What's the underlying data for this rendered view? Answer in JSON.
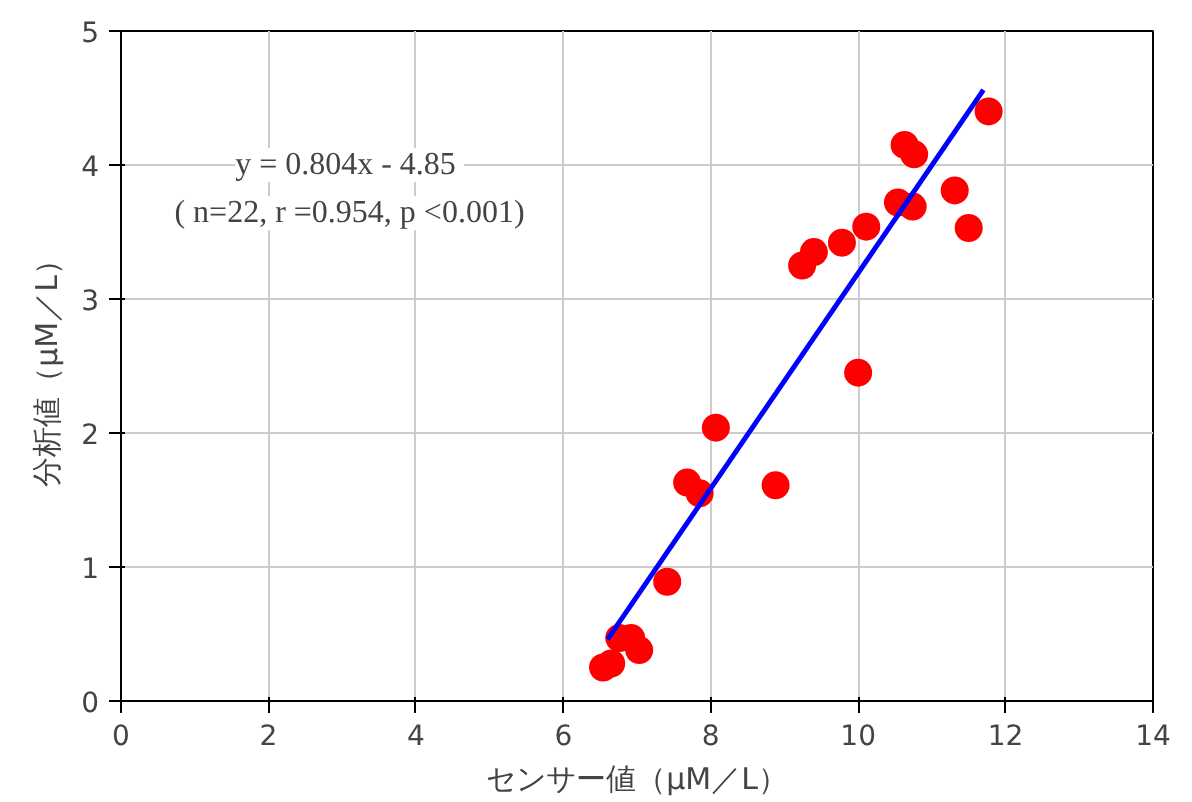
{
  "chart_data": {
    "type": "scatter",
    "xlabel": "センサー値（μM／L）",
    "ylabel": "分析値（μM／L）",
    "xlim": [
      0,
      14
    ],
    "xticks": [
      0,
      2,
      4,
      6,
      8,
      10,
      12,
      14
    ],
    "ylim": [
      0,
      5
    ],
    "yticks": [
      0,
      1,
      2,
      3,
      4,
      5
    ],
    "grid": true,
    "series": [
      {
        "marker": "circle",
        "color": "#ff0000",
        "x": [
          6.54,
          6.65,
          6.76,
          6.92,
          7.03,
          7.41,
          7.68,
          7.85,
          8.07,
          8.88,
          10.0,
          9.24,
          9.4,
          9.78,
          10.11,
          10.54,
          10.74,
          10.63,
          10.76,
          11.31,
          11.5,
          11.77
        ],
        "values": [
          0.25,
          0.28,
          0.47,
          0.47,
          0.38,
          0.89,
          1.63,
          1.55,
          2.04,
          1.61,
          2.45,
          3.25,
          3.35,
          3.42,
          3.54,
          3.72,
          3.69,
          4.15,
          4.08,
          3.81,
          3.53,
          4.4
        ]
      },
      {
        "type": "line",
        "marker": "none",
        "color": "#0000ff",
        "x": [
          6.6,
          11.7
        ],
        "values": [
          0.46,
          4.56
        ]
      }
    ],
    "annotations": [
      "y = 0.804x  - 4.85",
      "( n=22, r =0.954, p <0.001)"
    ]
  }
}
